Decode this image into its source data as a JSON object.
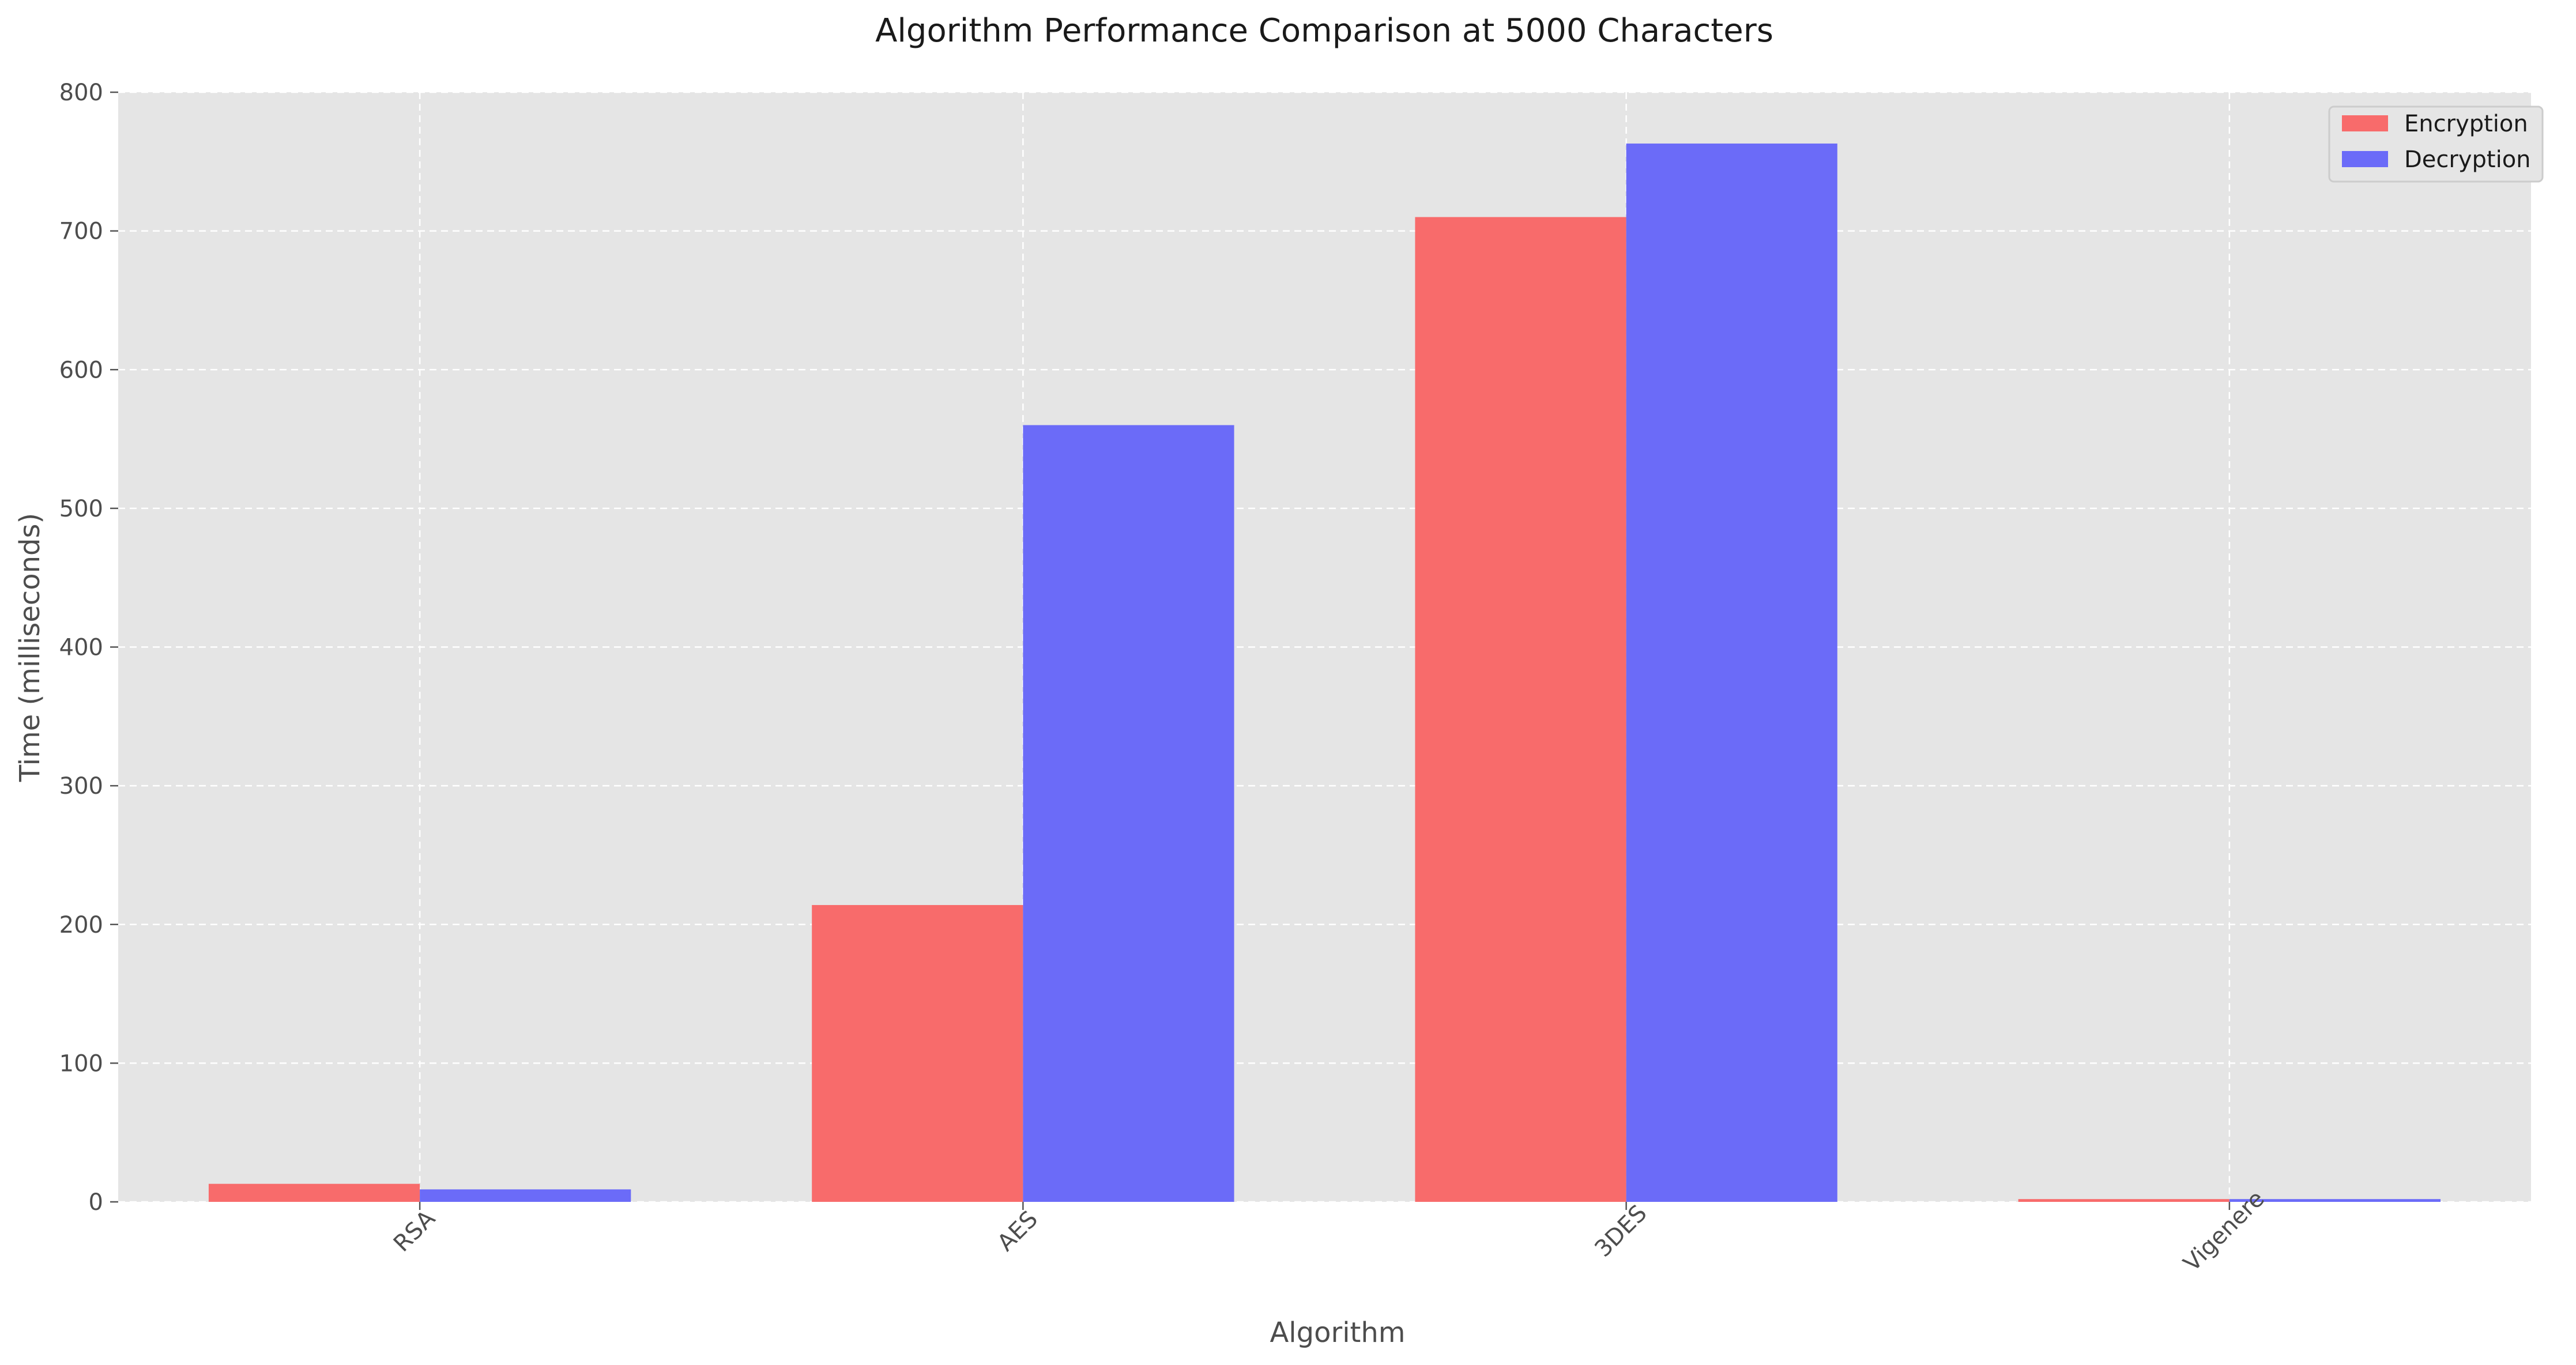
{
  "chart_data": {
    "type": "bar",
    "title": "Algorithm Performance Comparison at 5000 Characters",
    "xlabel": "Algorithm",
    "ylabel": "Time (milliseconds)",
    "categories": [
      "RSA",
      "AES",
      "3DES",
      "Vigenere"
    ],
    "series": [
      {
        "name": "Encryption",
        "color": "#f86b6b",
        "values": [
          13,
          214,
          710,
          2
        ]
      },
      {
        "name": "Decryption",
        "color": "#6b6bf8",
        "values": [
          9,
          560,
          763,
          2
        ]
      }
    ],
    "ylim": [
      0,
      800
    ],
    "yticks": [
      0,
      100,
      200,
      300,
      400,
      500,
      600,
      700,
      800
    ],
    "grid": true,
    "legend_position": "top-right",
    "plot_background": "#e5e5e5"
  }
}
